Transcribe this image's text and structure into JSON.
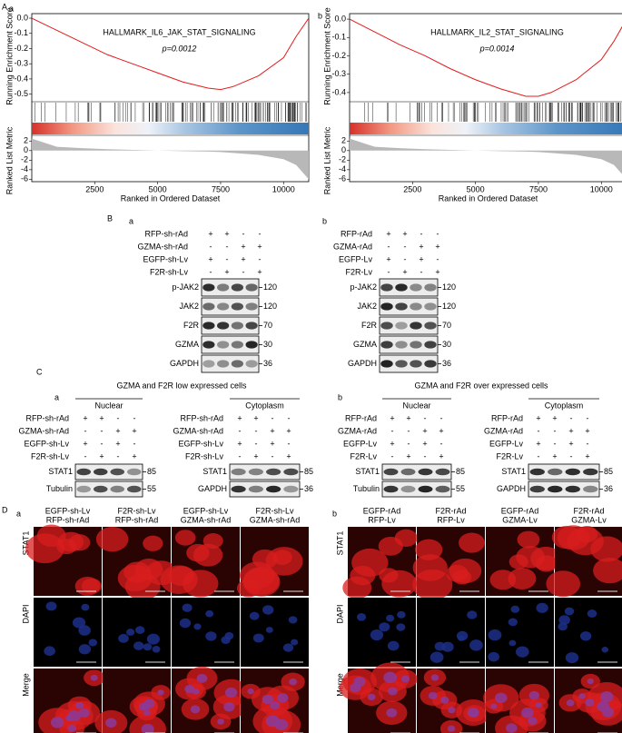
{
  "panel_a": {
    "label": "A",
    "plots": [
      {
        "sub": "a",
        "gene_set": "HALLMARK_IL6_JAK_STAT_SIGNALING",
        "p": "p=0.0012",
        "y_label": "Running Enrichment Score",
        "metric_label": "Ranked List Metric",
        "x_label": "Ranked in Ordered Dataset",
        "ylim": [
          -0.55,
          0.03
        ],
        "yticks": [
          {
            "value": 0,
            "label": "0.0"
          },
          -0.1,
          -0.2,
          -0.3,
          -0.4,
          -0.5
        ],
        "metric_lim": [
          -6.5,
          3
        ],
        "metric_ticks": [
          2,
          0,
          -2,
          -4,
          -6
        ],
        "xlim": [
          0,
          11000
        ],
        "xticks": [
          2500,
          5000,
          7500,
          10000
        ],
        "x": [
          0,
          1000,
          2000,
          3000,
          4000,
          5000,
          6000,
          7000,
          7500,
          8000,
          9000,
          10000,
          10500,
          11000
        ],
        "scores": [
          0,
          -0.08,
          -0.16,
          -0.24,
          -0.3,
          -0.36,
          -0.42,
          -0.46,
          -0.47,
          -0.45,
          -0.38,
          -0.26,
          -0.12,
          0
        ],
        "metric": [
          2.5,
          0.8,
          0.5,
          0.3,
          0.15,
          0,
          -0.1,
          -0.2,
          -0.3,
          -0.5,
          -0.9,
          -1.8,
          -3,
          -6
        ]
      },
      {
        "sub": "b",
        "gene_set": "HALLMARK_IL2_STAT_SIGNALING",
        "p": "p=0.0014",
        "y_label": "Running Enrichment Score",
        "metric_label": "Ranked List Metric",
        "x_label": "Ranked in Ordered Dataset",
        "ylim": [
          -0.45,
          0.03
        ],
        "yticks": [
          {
            "value": 0,
            "label": "0.0"
          },
          -0.1,
          -0.2,
          -0.3,
          -0.4
        ],
        "metric_lim": [
          -6.5,
          3
        ],
        "metric_ticks": [
          2,
          0,
          -2,
          -4,
          -6
        ],
        "xlim": [
          0,
          11000
        ],
        "xticks": [
          2500,
          5000,
          7500,
          10000
        ],
        "x": [
          0,
          1000,
          2000,
          3000,
          4000,
          5000,
          6000,
          7000,
          7500,
          8000,
          9000,
          10000,
          10500,
          11000
        ],
        "scores": [
          0,
          -0.07,
          -0.14,
          -0.2,
          -0.27,
          -0.33,
          -0.38,
          -0.42,
          -0.42,
          -0.4,
          -0.33,
          -0.22,
          -0.12,
          0
        ],
        "metric": [
          2.5,
          0.8,
          0.5,
          0.3,
          0.15,
          0,
          -0.1,
          -0.2,
          -0.3,
          -0.5,
          -0.9,
          -1.8,
          -3,
          -6
        ]
      }
    ]
  },
  "panel_b": {
    "label": "B",
    "blots": [
      {
        "sub": "a",
        "conditions": [
          {
            "name": "RFP-sh-rAd",
            "signs": [
              "+",
              "+",
              "-",
              "-"
            ]
          },
          {
            "name": "GZMA-sh-rAd",
            "signs": [
              "-",
              "-",
              "+",
              "+"
            ]
          },
          {
            "name": "EGFP-sh-Lv",
            "signs": [
              "+",
              "-",
              "+",
              "-"
            ]
          },
          {
            "name": "F2R-sh-Lv",
            "signs": [
              "-",
              "+",
              "-",
              "+"
            ]
          }
        ],
        "bands": [
          {
            "name": "p-JAK2",
            "size": 120
          },
          {
            "name": "JAK2",
            "size": 120
          },
          {
            "name": "F2R",
            "size": 70
          },
          {
            "name": "GZMA",
            "size": 30
          },
          {
            "name": "GAPDH",
            "size": 36
          }
        ]
      },
      {
        "sub": "b",
        "conditions": [
          {
            "name": "RFP-rAd",
            "signs": [
              "+",
              "+",
              "-",
              "-"
            ]
          },
          {
            "name": "GZMA-rAd",
            "signs": [
              "-",
              "-",
              "+",
              "+"
            ]
          },
          {
            "name": "EGFP-Lv",
            "signs": [
              "+",
              "-",
              "+",
              "-"
            ]
          },
          {
            "name": "F2R-Lv",
            "signs": [
              "-",
              "+",
              "-",
              "+"
            ]
          }
        ],
        "bands": [
          {
            "name": "p-JAK2",
            "size": 120
          },
          {
            "name": "JAK2",
            "size": 120
          },
          {
            "name": "F2R",
            "size": 70
          },
          {
            "name": "GZMA",
            "size": 30
          },
          {
            "name": "GAPDH",
            "size": 36
          }
        ]
      }
    ]
  },
  "panel_c": {
    "label": "C",
    "groups": [
      {
        "sub": "a",
        "title": "GZMA and F2R low expressed cells",
        "blocks": [
          {
            "header": "Nuclear",
            "conditions": [
              {
                "name": "RFP-sh-rAd",
                "signs": [
                  "+",
                  "+",
                  "-",
                  "-"
                ]
              },
              {
                "name": "GZMA-sh-rAd",
                "signs": [
                  "-",
                  "-",
                  "+",
                  "+"
                ]
              },
              {
                "name": "EGFP-sh-Lv",
                "signs": [
                  "+",
                  "-",
                  "+",
                  "-"
                ]
              },
              {
                "name": "F2R-sh-Lv",
                "signs": [
                  "-",
                  "+",
                  "-",
                  "+"
                ]
              }
            ],
            "bands": [
              {
                "name": "STAT1",
                "size": 85
              },
              {
                "name": "Tubulin",
                "size": 55
              }
            ]
          },
          {
            "header": "Cytoplasm",
            "conditions": [
              {
                "name": "RFP-sh-rAd",
                "signs": [
                  "+",
                  "+",
                  "-",
                  "-"
                ]
              },
              {
                "name": "GZMA-sh-rAd",
                "signs": [
                  "-",
                  "-",
                  "+",
                  "+"
                ]
              },
              {
                "name": "EGFP-sh-Lv",
                "signs": [
                  "+",
                  "-",
                  "+",
                  "-"
                ]
              },
              {
                "name": "F2R-sh-Lv",
                "signs": [
                  "-",
                  "+",
                  "-",
                  "+"
                ]
              }
            ],
            "bands": [
              {
                "name": "STAT1",
                "size": 85
              },
              {
                "name": "GAPDH",
                "size": 36
              }
            ]
          }
        ]
      },
      {
        "sub": "b",
        "title": "GZMA and F2R over expressed cells",
        "blocks": [
          {
            "header": "Nuclear",
            "conditions": [
              {
                "name": "RFP-rAd",
                "signs": [
                  "+",
                  "+",
                  "-",
                  "-"
                ]
              },
              {
                "name": "GZMA-rAd",
                "signs": [
                  "-",
                  "-",
                  "+",
                  "+"
                ]
              },
              {
                "name": "EGFP-Lv",
                "signs": [
                  "+",
                  "-",
                  "+",
                  "-"
                ]
              },
              {
                "name": "F2R-Lv",
                "signs": [
                  "-",
                  "+",
                  "-",
                  "+"
                ]
              }
            ],
            "bands": [
              {
                "name": "STAT1",
                "size": 85
              },
              {
                "name": "Tubulin",
                "size": 55
              }
            ]
          },
          {
            "header": "Cytoplasm",
            "conditions": [
              {
                "name": "RFP-rAd",
                "signs": [
                  "+",
                  "+",
                  "-",
                  "-"
                ]
              },
              {
                "name": "GZMA-rAd",
                "signs": [
                  "-",
                  "-",
                  "+",
                  "+"
                ]
              },
              {
                "name": "EGFP-Lv",
                "signs": [
                  "+",
                  "-",
                  "+",
                  "-"
                ]
              },
              {
                "name": "F2R-Lv",
                "signs": [
                  "-",
                  "+",
                  "-",
                  "+"
                ]
              }
            ],
            "bands": [
              {
                "name": "STAT1",
                "size": 85
              },
              {
                "name": "GAPDH",
                "size": 36
              }
            ]
          }
        ]
      }
    ]
  },
  "panel_d": {
    "label": "D",
    "groups": [
      {
        "sub": "a",
        "columns": [
          [
            "EGFP-sh-Lv",
            "RFP-sh-rAd"
          ],
          [
            "F2R-sh-Lv",
            "RFP-sh-rAd"
          ],
          [
            "EGFP-sh-Lv",
            "GZMA-sh-rAd"
          ],
          [
            "F2R-sh-Lv",
            "GZMA-sh-rAd"
          ]
        ],
        "rows": [
          {
            "name": "STAT1",
            "color": "#e8262b"
          },
          {
            "name": "DAPI",
            "color": "#3a55c8"
          },
          {
            "name": "Merge",
            "color": "#000000"
          }
        ]
      },
      {
        "sub": "b",
        "columns": [
          [
            "EGFP-rAd",
            "RFP-Lv"
          ],
          [
            "F2R-rAd",
            "RFP-Lv"
          ],
          [
            "EGFP-rAd",
            "GZMA-Lv"
          ],
          [
            "F2R-rAd",
            "GZMA-Lv"
          ]
        ],
        "rows": [
          {
            "name": "STAT1",
            "color": "#e8262b"
          },
          {
            "name": "DAPI",
            "color": "#3a55c8"
          },
          {
            "name": "Merge",
            "color": "#000000"
          }
        ]
      }
    ]
  }
}
